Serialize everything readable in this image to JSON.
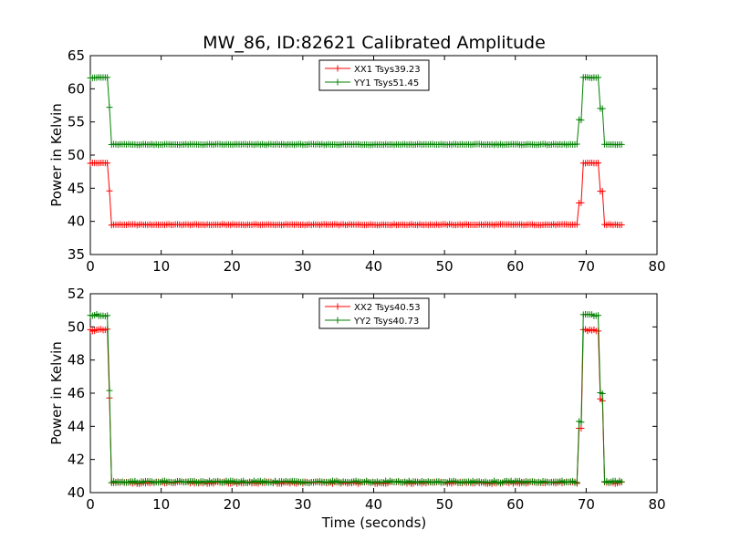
{
  "chart_data": [
    {
      "type": "line",
      "title": "MW_86, ID:82621 Calibrated Amplitude",
      "xlabel": "",
      "ylabel": "Power in Kelvin",
      "xlim": [
        0,
        80
      ],
      "ylim": [
        35,
        65
      ],
      "xticks": [
        "0",
        "10",
        "20",
        "30",
        "40",
        "50",
        "60",
        "70",
        "80"
      ],
      "yticks": [
        "35",
        "40",
        "45",
        "50",
        "55",
        "60",
        "65"
      ],
      "legend_position": "top-center",
      "series": [
        {
          "name": "XX1 Tsys39.23",
          "color": "#ff0000",
          "marker": "plus",
          "low": 39.5,
          "high": 48.8,
          "mid_on": 44.6,
          "mid_off": 42.8,
          "mid_off2": 44.5
        },
        {
          "name": "YY1 Tsys51.45",
          "color": "#008000",
          "marker": "plus",
          "low": 51.6,
          "high": 61.7,
          "mid_on": 57.2,
          "mid_off": 55.3,
          "mid_off2": 57.0
        }
      ]
    },
    {
      "type": "line",
      "title": "",
      "xlabel": "Time (seconds)",
      "ylabel": "Power in Kelvin",
      "xlim": [
        0,
        80
      ],
      "ylim": [
        40,
        52
      ],
      "xticks": [
        "0",
        "10",
        "20",
        "30",
        "40",
        "50",
        "60",
        "70",
        "80"
      ],
      "yticks": [
        "40",
        "42",
        "44",
        "46",
        "48",
        "50",
        "52"
      ],
      "legend_position": "top-center",
      "series": [
        {
          "name": "XX2 Tsys40.53",
          "color": "#ff0000",
          "marker": "plus",
          "low": 40.6,
          "high": 49.8,
          "mid_on": 45.7,
          "mid_off": 43.9,
          "mid_off2": 45.6
        },
        {
          "name": "YY2 Tsys40.73",
          "color": "#008000",
          "marker": "plus",
          "low": 40.65,
          "high": 50.7,
          "mid_on": 46.2,
          "mid_off": 44.3,
          "mid_off2": 46.0
        }
      ]
    }
  ]
}
